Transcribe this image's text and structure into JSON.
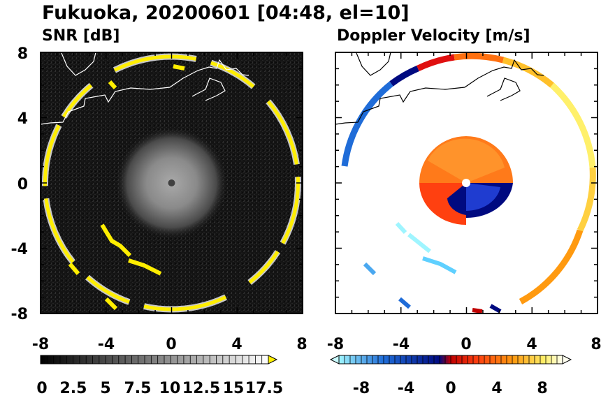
{
  "figure": {
    "title": "Fukuoka, 20200601 [04:48, el=10]"
  },
  "chart_data": [
    {
      "type": "heatmap",
      "title": "SNR [dB]",
      "xticks": [
        "-8",
        "-4",
        "0",
        "4",
        "8"
      ],
      "yticks": [
        "8",
        "4",
        "0",
        "-4",
        "-8"
      ],
      "xlim": [
        -8,
        8
      ],
      "ylim": [
        -8,
        8
      ],
      "colorbar": {
        "levels": [
          0,
          17.5
        ],
        "tick_labels": [
          "0",
          "2.5",
          "5",
          "7.5",
          "10",
          "12.5",
          "15",
          "17.5"
        ],
        "extend": "max",
        "colors": [
          "#000000",
          "#ffffff",
          "#fff000"
        ]
      },
      "features": {
        "ring_radius": 7.9,
        "center_high_snr_radius": 3.2
      }
    },
    {
      "type": "heatmap",
      "title": "Doppler Velocity [m/s]",
      "xticks": [
        "-8",
        "-4",
        "0",
        "4",
        "8"
      ],
      "yticks": [
        "8",
        "4",
        "0",
        "-4",
        "-8"
      ],
      "xlim": [
        -8,
        8
      ],
      "ylim": [
        -8,
        8
      ],
      "colorbar": {
        "levels": [
          -10,
          10
        ],
        "tick_labels": [
          "-8",
          "-4",
          "0",
          "4",
          "8"
        ],
        "extend": "both",
        "colors": [
          "#9ff5ff",
          "#1f6cd8",
          "#000a80",
          "#c00000",
          "#ff4010",
          "#ff9a10",
          "#fff06a",
          "#fffff0"
        ]
      },
      "features": {
        "ring_radius": 7.9
      }
    }
  ]
}
